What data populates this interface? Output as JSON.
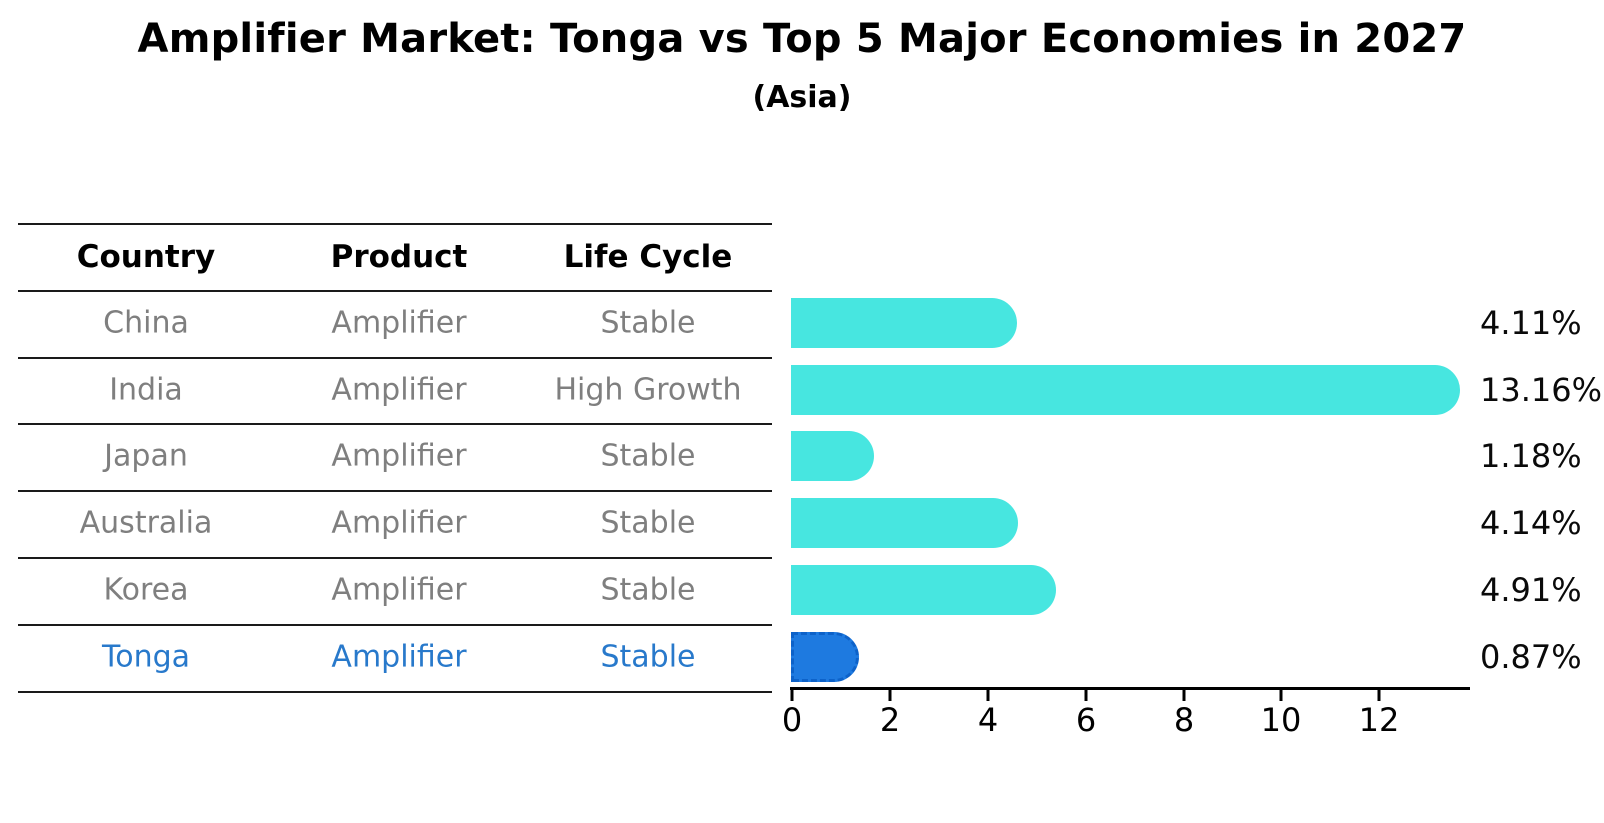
{
  "header": {
    "title": "Amplifier Market: Tonga vs Top 5 Major Economies in 2027",
    "subtitle": "(Asia)"
  },
  "table": {
    "headers": [
      "Country",
      "Product",
      "Life Cycle"
    ],
    "rows": [
      {
        "country": "China",
        "product": "Amplifier",
        "life_cycle": "Stable",
        "highlighted": false
      },
      {
        "country": "India",
        "product": "Amplifier",
        "life_cycle": "High Growth",
        "highlighted": false
      },
      {
        "country": "Japan",
        "product": "Amplifier",
        "life_cycle": "Stable",
        "highlighted": false
      },
      {
        "country": "Australia",
        "product": "Amplifier",
        "life_cycle": "Stable",
        "highlighted": false
      },
      {
        "country": "Korea",
        "product": "Amplifier",
        "life_cycle": "Stable",
        "highlighted": false
      },
      {
        "country": "Tonga",
        "product": "Amplifier",
        "life_cycle": "Stable",
        "highlighted": true
      }
    ]
  },
  "chart_data": {
    "type": "bar",
    "orientation": "horizontal",
    "title": "Amplifier Market: Tonga vs Top 5 Major Economies in 2027",
    "subtitle": "(Asia)",
    "categories": [
      "China",
      "India",
      "Japan",
      "Australia",
      "Korea",
      "Tonga"
    ],
    "values": [
      4.11,
      13.16,
      1.18,
      4.14,
      4.91,
      0.87
    ],
    "value_labels": [
      "4.11%",
      "13.16%",
      "1.18%",
      "4.14%",
      "4.91%",
      "0.87%"
    ],
    "highlight_category": "Tonga",
    "xlabel": "",
    "ylabel": "",
    "xlim": [
      0,
      13.9
    ],
    "xticks": [
      "0",
      "2",
      "4",
      "6",
      "8",
      "10",
      "12"
    ],
    "grid": false,
    "legend": false,
    "colors": {
      "bar": "#47E6E0",
      "highlight_bar": "#1E7AE0",
      "highlight_text": "#2879CB",
      "row_text": "#7F7F7F",
      "axis_text": "#000000"
    }
  }
}
